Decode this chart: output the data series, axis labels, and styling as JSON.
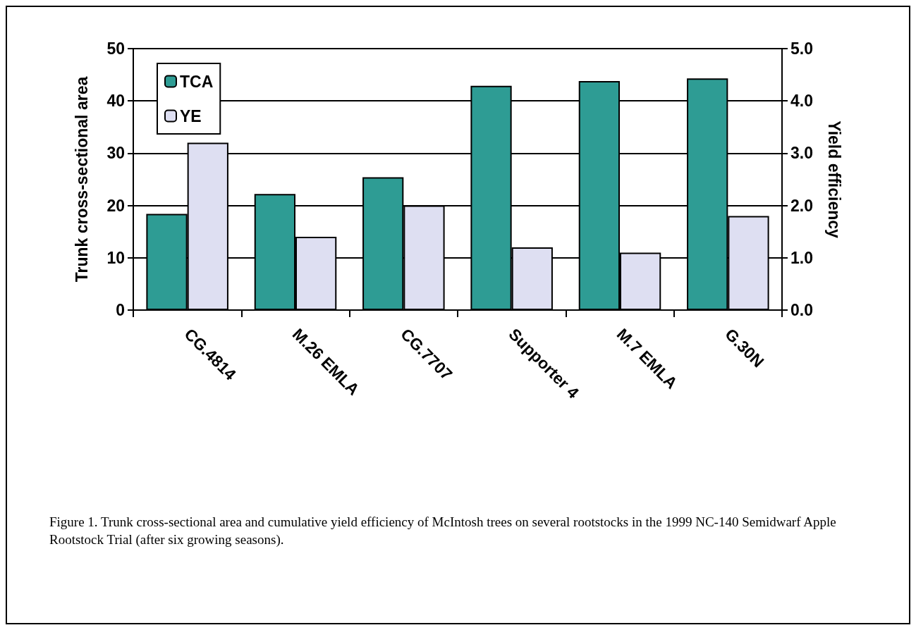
{
  "chart_data": {
    "type": "bar",
    "categories": [
      "CG.4814",
      "M.26 EMLA",
      "CG.7707",
      "Supporter 4",
      "M.7 EMLA",
      "G.30N"
    ],
    "series": [
      {
        "name": "TCA",
        "color": "#2e9c94",
        "values": [
          18.4,
          22.2,
          25.4,
          42.9,
          43.8,
          44.3
        ]
      },
      {
        "name": "YE",
        "color": "#dedff2",
        "axis": "y2",
        "values": [
          3.2,
          1.4,
          2.0,
          1.2,
          1.1,
          1.8
        ]
      }
    ],
    "ylabel": "Trunk cross-sectional area",
    "y2label": "Yield efficiency",
    "ylim": [
      0,
      50
    ],
    "yticks": [
      0,
      10,
      20,
      30,
      40,
      50
    ],
    "y2lim": [
      0,
      5
    ],
    "y2ticks": [
      {
        "value": 0,
        "label": "0.0"
      },
      {
        "value": 1,
        "label": "1.0"
      },
      {
        "value": 2,
        "label": "2.0"
      },
      {
        "value": 3,
        "label": "3.0"
      },
      {
        "value": 4,
        "label": "4.0"
      },
      {
        "value": 5,
        "label": "5.0"
      }
    ],
    "grid": "y",
    "legend": "top left",
    "annotations": [
      "Figure 1.  Trunk cross-sectional area and cumulative yield efficiency of McIntosh trees on several rootstocks in the 1999 NC-140 Semidwarf Apple Rootstock Trial (after six growing seasons)."
    ]
  }
}
